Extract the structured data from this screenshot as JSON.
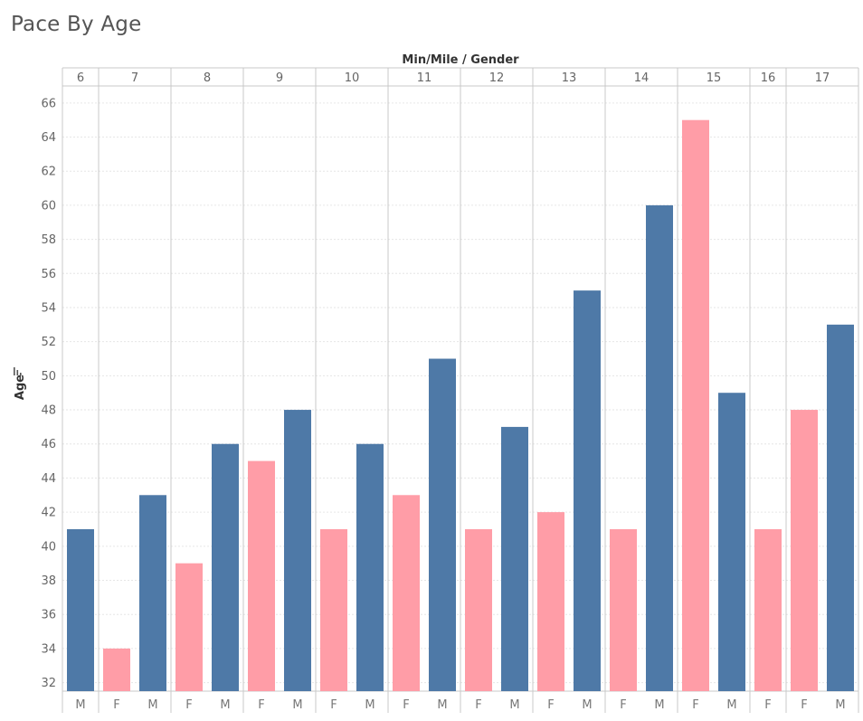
{
  "page": {
    "title": "Pace By Age"
  },
  "chart_data": {
    "type": "bar",
    "title": "Pace By Age",
    "column_header": "Min/Mile / Gender",
    "ylabel": "Age",
    "ylim": [
      31.5,
      67
    ],
    "yticks": [
      32,
      34,
      36,
      38,
      40,
      42,
      44,
      46,
      48,
      50,
      52,
      54,
      56,
      58,
      60,
      62,
      64,
      66
    ],
    "grid": true,
    "colors": {
      "M": "#4e79a7",
      "F": "#ff9da7"
    },
    "groups": [
      {
        "pace": "6",
        "bars": [
          {
            "gender": "M",
            "value": 41
          }
        ]
      },
      {
        "pace": "7",
        "bars": [
          {
            "gender": "F",
            "value": 34
          },
          {
            "gender": "M",
            "value": 43
          }
        ]
      },
      {
        "pace": "8",
        "bars": [
          {
            "gender": "F",
            "value": 39
          },
          {
            "gender": "M",
            "value": 46
          }
        ]
      },
      {
        "pace": "9",
        "bars": [
          {
            "gender": "F",
            "value": 45
          },
          {
            "gender": "M",
            "value": 48
          }
        ]
      },
      {
        "pace": "10",
        "bars": [
          {
            "gender": "F",
            "value": 41
          },
          {
            "gender": "M",
            "value": 46
          }
        ]
      },
      {
        "pace": "11",
        "bars": [
          {
            "gender": "F",
            "value": 43
          },
          {
            "gender": "M",
            "value": 51
          }
        ]
      },
      {
        "pace": "12",
        "bars": [
          {
            "gender": "F",
            "value": 41
          },
          {
            "gender": "M",
            "value": 47
          }
        ]
      },
      {
        "pace": "13",
        "bars": [
          {
            "gender": "F",
            "value": 42
          },
          {
            "gender": "M",
            "value": 55
          }
        ]
      },
      {
        "pace": "14",
        "bars": [
          {
            "gender": "F",
            "value": 41
          },
          {
            "gender": "M",
            "value": 60
          }
        ]
      },
      {
        "pace": "15",
        "bars": [
          {
            "gender": "F",
            "value": 65
          },
          {
            "gender": "M",
            "value": 49
          }
        ]
      },
      {
        "pace": "16",
        "bars": [
          {
            "gender": "F",
            "value": 41
          }
        ]
      },
      {
        "pace": "17",
        "bars": [
          {
            "gender": "F",
            "value": 48
          },
          {
            "gender": "M",
            "value": 53
          }
        ]
      }
    ]
  }
}
